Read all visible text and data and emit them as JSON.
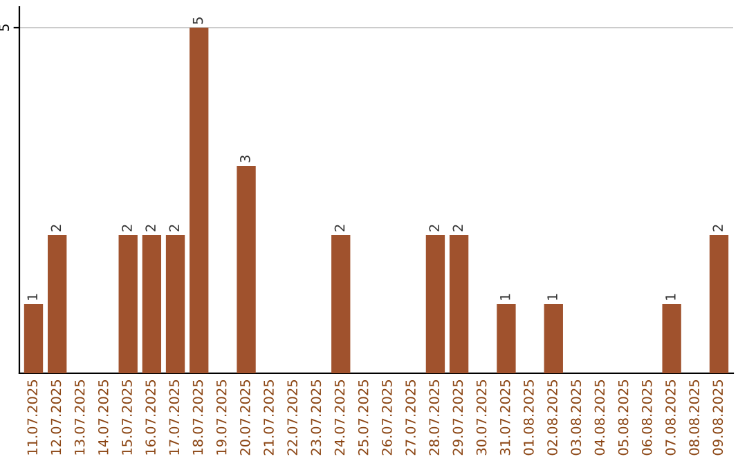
{
  "chart_data": {
    "type": "bar",
    "categories": [
      "11.07.2025",
      "12.07.2025",
      "13.07.2025",
      "14.07.2025",
      "15.07.2025",
      "16.07.2025",
      "17.07.2025",
      "18.07.2025",
      "19.07.2025",
      "20.07.2025",
      "21.07.2025",
      "22.07.2025",
      "23.07.2025",
      "24.07.2025",
      "25.07.2025",
      "26.07.2025",
      "27.07.2025",
      "28.07.2025",
      "29.07.2025",
      "30.07.2025",
      "31.07.2025",
      "01.08.2025",
      "02.08.2025",
      "03.08.2025",
      "04.08.2025",
      "05.08.2025",
      "06.08.2025",
      "07.08.2025",
      "08.08.2025",
      "09.08.2025"
    ],
    "values": [
      1,
      2,
      0,
      0,
      2,
      2,
      2,
      5,
      0,
      3,
      0,
      0,
      0,
      2,
      0,
      0,
      0,
      2,
      2,
      0,
      1,
      0,
      1,
      0,
      0,
      0,
      0,
      1,
      0,
      2
    ],
    "value_labels": [
      "1",
      "2",
      null,
      null,
      "2",
      "2",
      "2",
      "5",
      null,
      "3",
      null,
      null,
      null,
      "2",
      null,
      null,
      null,
      "2",
      "2",
      null,
      "1",
      null,
      "1",
      null,
      null,
      null,
      null,
      "1",
      null,
      "2"
    ],
    "color": "#a0522d",
    "ylim": [
      0,
      5.3
    ],
    "yticks": [
      5
    ],
    "grid": "y",
    "legend": false
  }
}
